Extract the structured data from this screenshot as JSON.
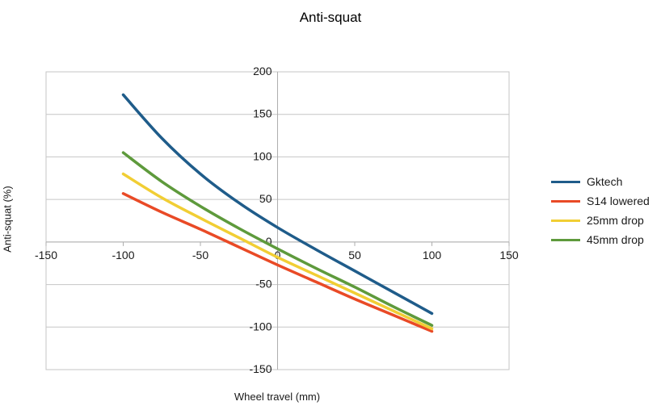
{
  "chart_data": {
    "type": "line",
    "title": "Anti-squat",
    "xlabel": "Wheel travel (mm)",
    "ylabel": "Anti-squat (%)",
    "xlim": [
      -150,
      150
    ],
    "ylim": [
      -150,
      200
    ],
    "x_ticks": [
      -150,
      -100,
      -50,
      0,
      50,
      100,
      150
    ],
    "y_ticks": [
      200,
      150,
      100,
      50,
      0,
      -50,
      -100,
      -150
    ],
    "grid": "horizontal",
    "legend_position": "right",
    "x": [
      -100,
      -75,
      -50,
      -25,
      0,
      25,
      50,
      75,
      100
    ],
    "series": [
      {
        "name": "Gktech",
        "color": "#1F5C8A",
        "values": [
          173,
          122,
          80,
          46,
          17,
          -9,
          -34,
          -59,
          -84
        ]
      },
      {
        "name": "S14 lowered",
        "color": "#E94A26",
        "values": [
          57,
          35,
          15,
          -6,
          -27,
          -47,
          -67,
          -86,
          -105
        ]
      },
      {
        "name": "25mm drop",
        "color": "#F1CE34",
        "values": [
          80,
          52,
          28,
          5,
          -18,
          -39,
          -60,
          -81,
          -102
        ]
      },
      {
        "name": "45mm drop",
        "color": "#5E9A3C",
        "values": [
          105,
          71,
          42,
          16,
          -8,
          -31,
          -53,
          -76,
          -98
        ]
      }
    ],
    "styles": {
      "grid_color": "#c6c6c6",
      "axis_color": "#aeaeae",
      "tick_label_color": "#1a1a1a",
      "line_width": 3.5
    }
  }
}
